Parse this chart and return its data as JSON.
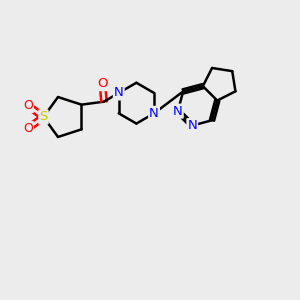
{
  "bg_color": "#ececec",
  "bond_color": "#000000",
  "nitrogen_color": "#0000ff",
  "oxygen_color": "#ff0000",
  "sulfur_color": "#cccc00",
  "bond_width": 1.8,
  "font_size": 9.5,
  "xlim": [
    0,
    10
  ],
  "ylim": [
    0,
    10
  ]
}
